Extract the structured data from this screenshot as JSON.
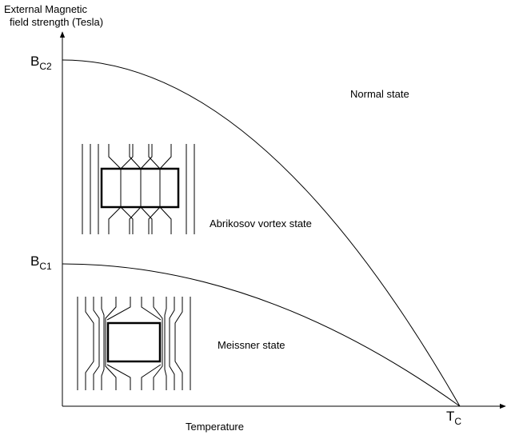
{
  "y_axis_label": [
    "External Magnetic",
    "field strength (Tesla)"
  ],
  "x_axis_label": "Temperature",
  "bc2": {
    "main": "B",
    "sub": "C2"
  },
  "bc1": {
    "main": "B",
    "sub": "C1"
  },
  "tc": {
    "main": "T",
    "sub": "C"
  },
  "regions": [
    "Normal state",
    "Abrikosov vortex state",
    "Meissner state"
  ]
}
